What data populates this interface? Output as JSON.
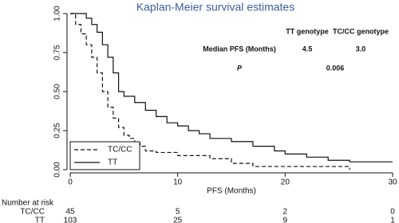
{
  "chart_data": {
    "type": "step",
    "title": "Kaplan-Meier survival estimates",
    "x_label": "PFS (Months)",
    "xlim": [
      0,
      30
    ],
    "xticks": [
      0,
      10,
      20,
      30
    ],
    "ylim": [
      0,
      1
    ],
    "yticks": [
      {
        "value": 0,
        "label": "0.00"
      },
      {
        "value": 0.25,
        "label": "0.25"
      },
      {
        "value": 0.5,
        "label": "0.50"
      },
      {
        "value": 0.75,
        "label": "0.75"
      },
      {
        "value": 1,
        "label": "1.00"
      }
    ],
    "legend": "lower left",
    "series": [
      {
        "name": "TC/CC",
        "color": "#111111",
        "dash": true,
        "x": [
          0,
          0.5,
          1,
          1.5,
          2,
          2.5,
          3,
          3.5,
          4,
          4.5,
          5,
          5.5,
          6,
          6.5,
          7,
          8,
          10,
          13,
          15,
          17,
          20,
          26
        ],
        "values": [
          1,
          0.93,
          0.87,
          0.8,
          0.72,
          0.62,
          0.5,
          0.4,
          0.33,
          0.27,
          0.22,
          0.2,
          0.17,
          0.15,
          0.12,
          0.11,
          0.09,
          0.07,
          0.04,
          0.02,
          0.02,
          0
        ]
      },
      {
        "name": "TT",
        "color": "#111111",
        "dash": false,
        "x": [
          0,
          1.5,
          2,
          2.5,
          3,
          3.5,
          4,
          4.5,
          5,
          6,
          7,
          8,
          9,
          10,
          11,
          12,
          13,
          15,
          17,
          19,
          20,
          22,
          24,
          26,
          30
        ],
        "values": [
          1,
          0.97,
          0.93,
          0.88,
          0.8,
          0.72,
          0.62,
          0.5,
          0.47,
          0.43,
          0.38,
          0.34,
          0.3,
          0.28,
          0.25,
          0.23,
          0.2,
          0.18,
          0.15,
          0.12,
          0.1,
          0.08,
          0.06,
          0.05,
          0.05
        ]
      }
    ],
    "stats_table": {
      "headers": [
        "TT genotype",
        "TC/CC genotype"
      ],
      "row_label": "Median PFS (Months)",
      "row_values": [
        "4.5",
        "3.0"
      ],
      "p_label": "P",
      "p_value": "0.006"
    },
    "risk_table": {
      "title": "Number at risk",
      "rows": [
        {
          "name": "TC/CC",
          "values": [
            45,
            5,
            2,
            0
          ]
        },
        {
          "name": "TT",
          "values": [
            103,
            25,
            9,
            1
          ]
        }
      ]
    }
  }
}
